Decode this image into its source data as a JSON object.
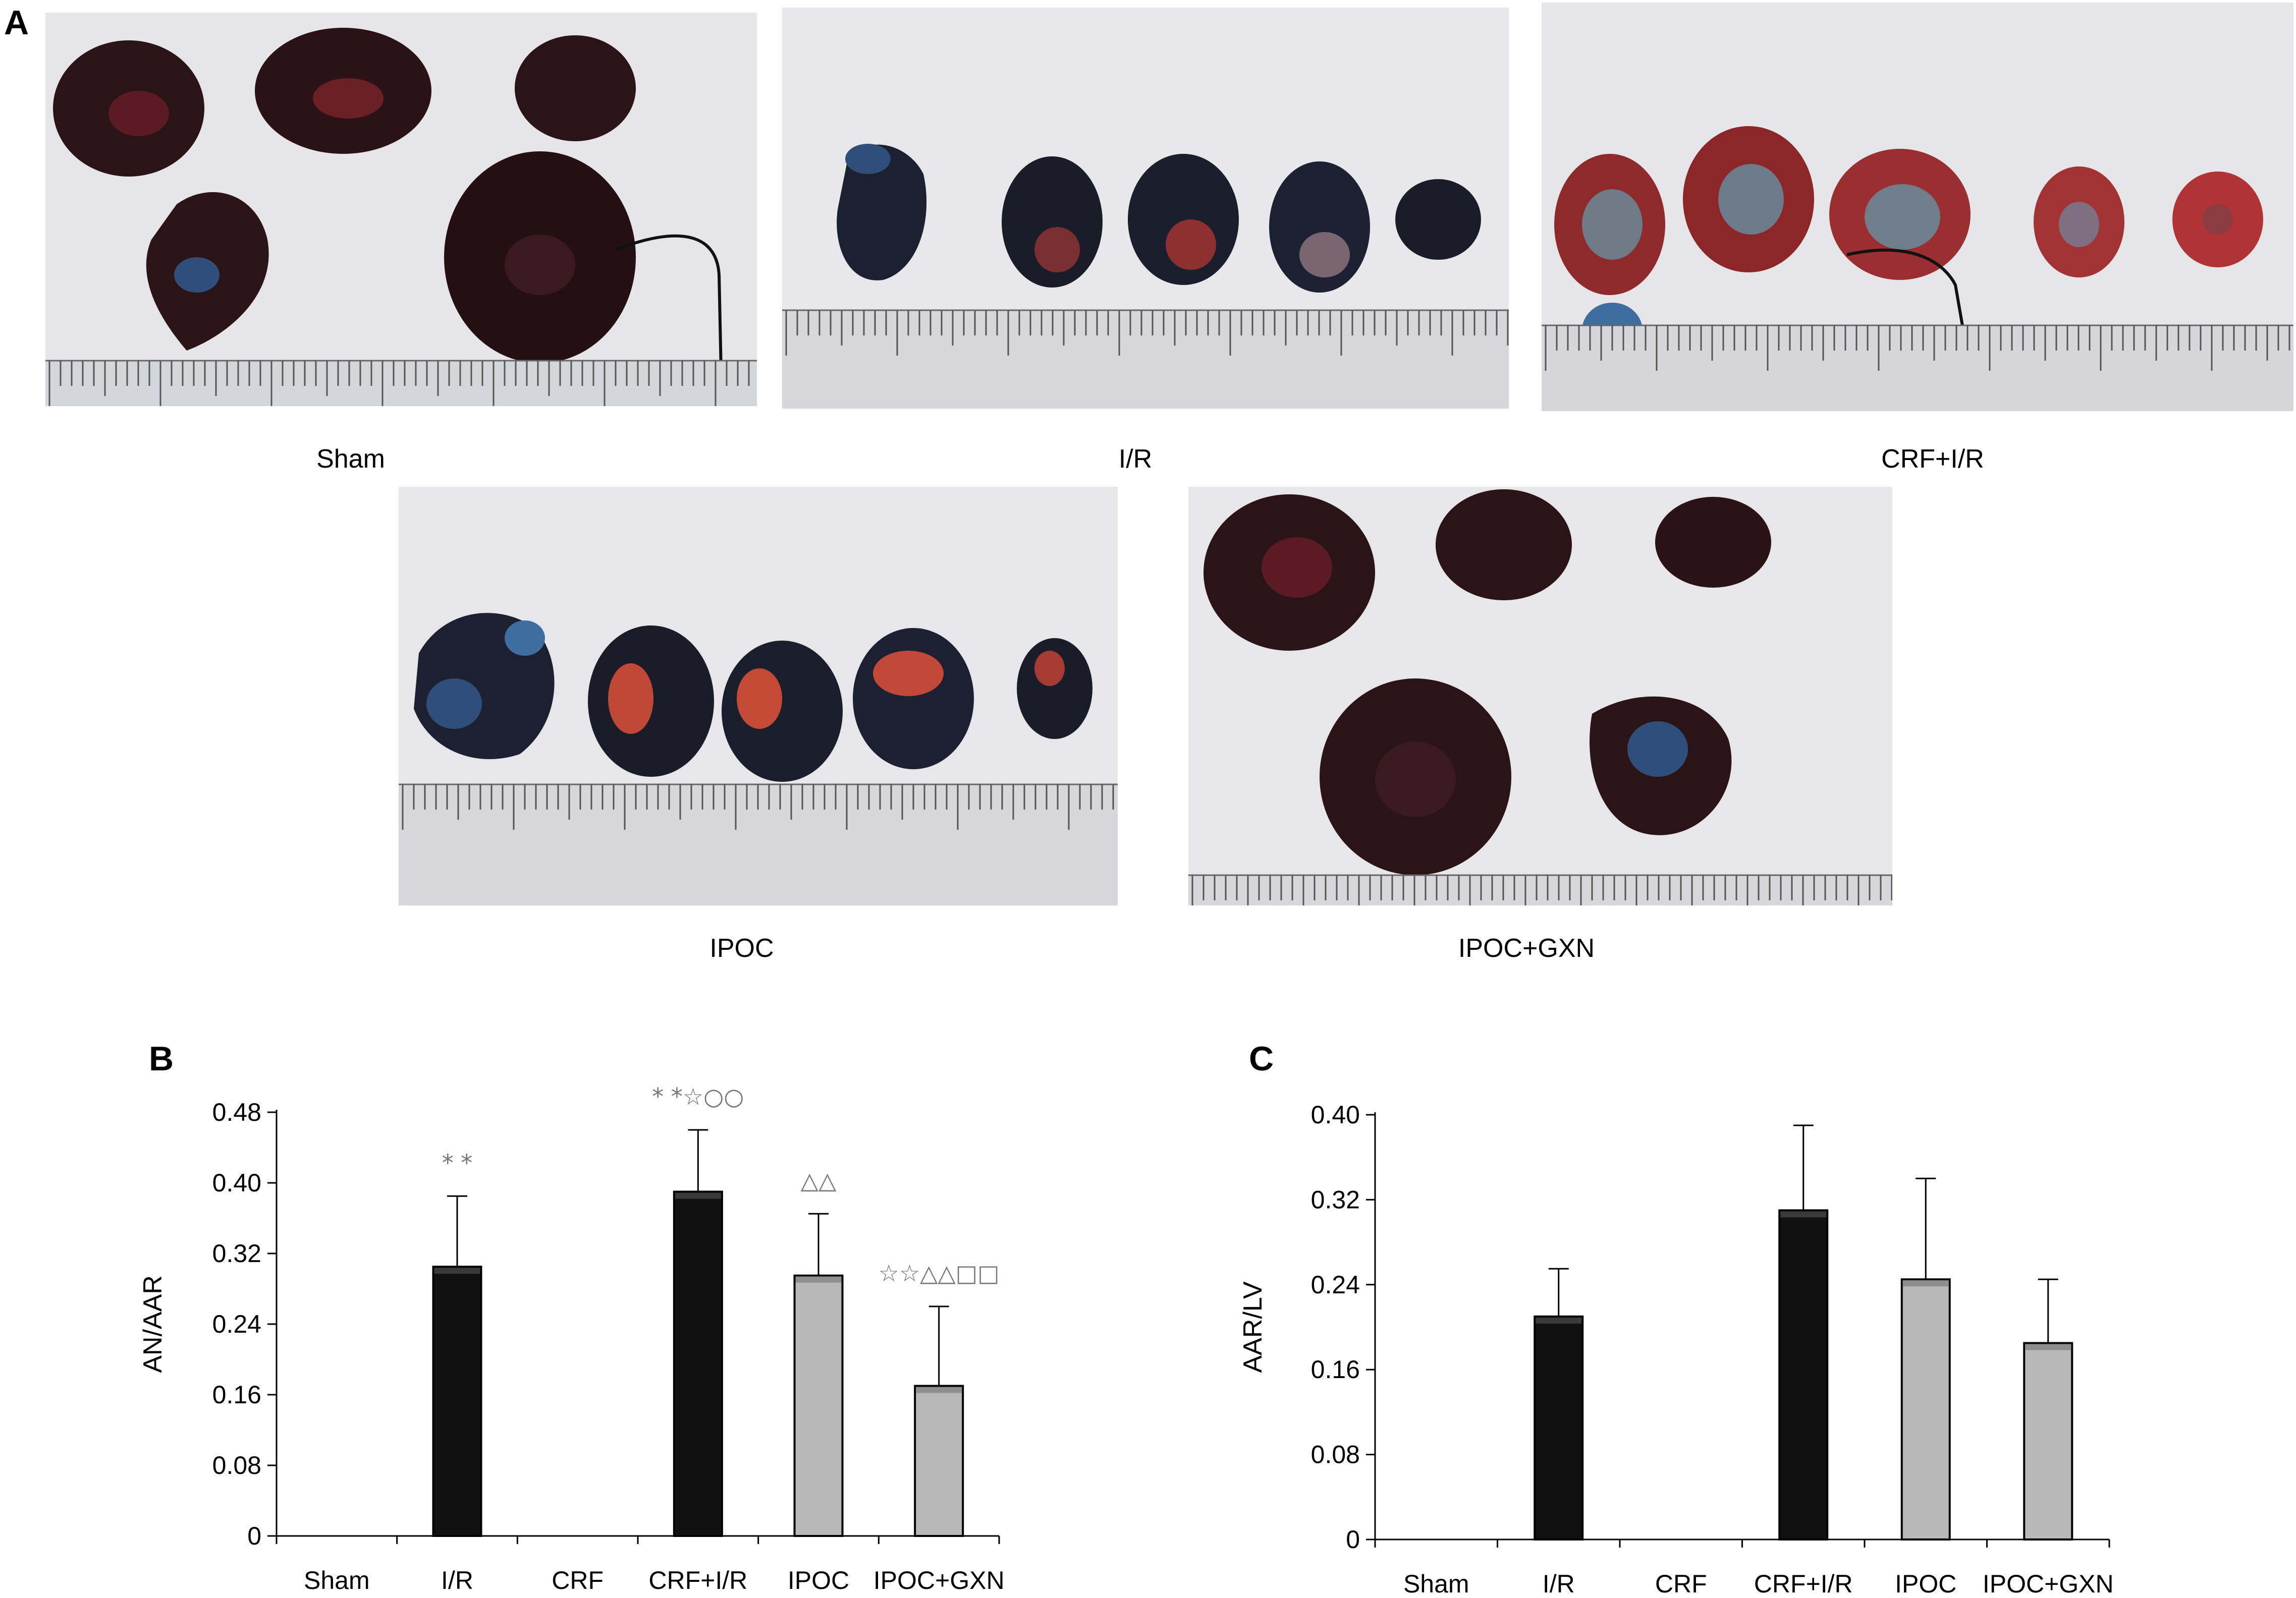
{
  "panel_a": {
    "label": "A",
    "photos": [
      {
        "caption": "Sham"
      },
      {
        "caption": "I/R"
      },
      {
        "caption": "CRF+I/R"
      },
      {
        "caption": "IPOC"
      },
      {
        "caption": "IPOC+GXN"
      }
    ]
  },
  "colors": {
    "black_bar": "#111111",
    "grey_bar": "#b8b8b8",
    "photo_bg": "#e7e7ea",
    "tissue_dark": "#2a1418",
    "tissue_red": "#8e2a2c",
    "tissue_blue": "#2f4f7a",
    "annotation": "#777777"
  },
  "chart_data": [
    {
      "panel_label": "B",
      "type": "bar",
      "categories": [
        "Sham",
        "I/R",
        "CRF",
        "CRF+I/R",
        "IPOC",
        "IPOC+GXN"
      ],
      "values": [
        0,
        0.305,
        0,
        0.39,
        0.295,
        0.17
      ],
      "errors": [
        0,
        0.08,
        0,
        0.07,
        0.07,
        0.09
      ],
      "bar_colors": [
        "black",
        "black",
        "black",
        "black",
        "grey",
        "grey"
      ],
      "annotations": [
        "",
        "* *",
        "",
        "* *☆○○",
        "△△",
        "☆☆△△□□"
      ],
      "ylabel": "AN/AAR",
      "ylim": [
        0,
        0.48
      ],
      "yticks": [
        "0",
        "0.08",
        "0.16",
        "0.24",
        "0.32",
        "0.40",
        "0.48"
      ],
      "ytick_values": [
        0,
        0.08,
        0.16,
        0.24,
        0.32,
        0.4,
        0.48
      ],
      "grid": false
    },
    {
      "panel_label": "C",
      "type": "bar",
      "categories": [
        "Sham",
        "I/R",
        "CRF",
        "CRF+I/R",
        "IPOC",
        "IPOC+GXN"
      ],
      "values": [
        0,
        0.21,
        0,
        0.31,
        0.245,
        0.185
      ],
      "errors": [
        0,
        0.045,
        0,
        0.08,
        0.095,
        0.06
      ],
      "bar_colors": [
        "black",
        "black",
        "black",
        "black",
        "grey",
        "grey"
      ],
      "annotations": [
        "",
        "",
        "",
        "",
        "",
        ""
      ],
      "ylabel": "AAR/LV",
      "ylim": [
        0,
        0.4
      ],
      "yticks": [
        "0",
        "0.08",
        "0.16",
        "0.24",
        "0.32",
        "0.40"
      ],
      "ytick_values": [
        0,
        0.08,
        0.16,
        0.24,
        0.32,
        0.4
      ],
      "grid": false
    }
  ]
}
